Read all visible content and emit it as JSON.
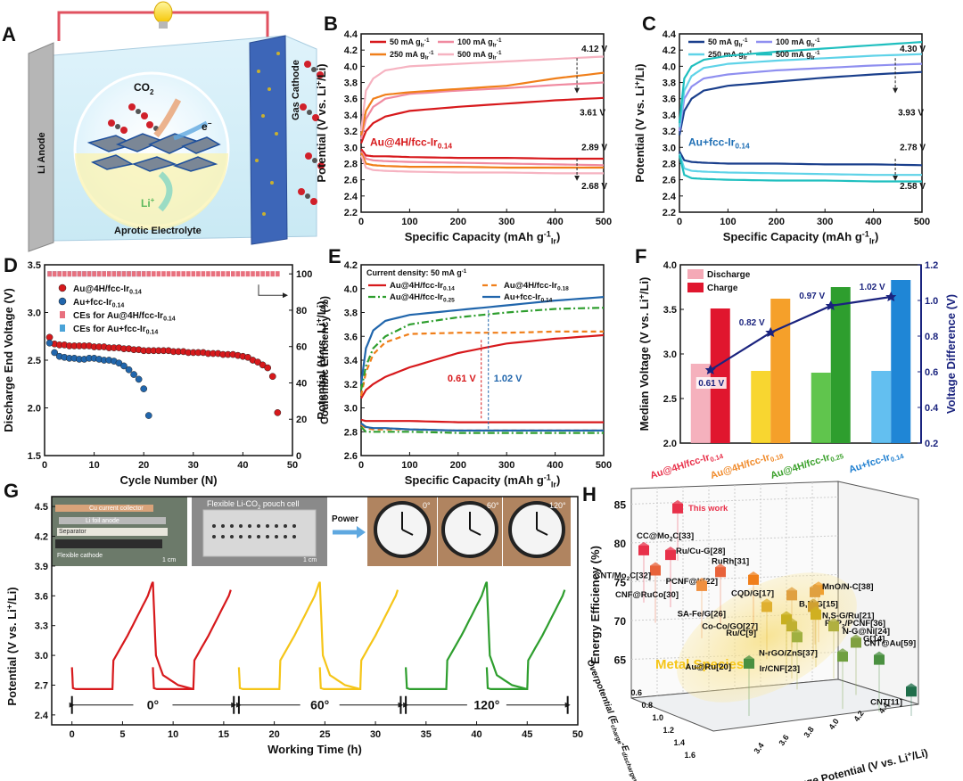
{
  "panels": {
    "A": {
      "letter": "A",
      "labels": {
        "anode": "Li Anode",
        "cathode": "Gas Cathode",
        "electrolyte": "Aprotic Electrolyte",
        "co2": "CO",
        "co2_sub": "2",
        "electron": "e",
        "electron_sup": "−",
        "li": "Li",
        "li_sup": "+"
      }
    },
    "B": {
      "letter": "B",
      "annotations": {
        "top": "4.12 V",
        "upper": "3.61 V",
        "lower_top": "2.89 V",
        "bottom": "2.68 V",
        "catalyst": "Au@4H/fcc-Ir0.14"
      }
    },
    "C": {
      "letter": "C",
      "annotations": {
        "top": "4.30 V",
        "upper": "3.93 V",
        "lower_top": "2.78 V",
        "bottom": "2.58 V",
        "catalyst": "Au+fcc-Ir0.14"
      }
    },
    "D": {
      "letter": "D"
    },
    "E": {
      "letter": "E",
      "note": "Current density: 50 mA g",
      "note_sup": "-1",
      "gap1": "0.61 V",
      "gap2": "1.02 V"
    },
    "F": {
      "letter": "F",
      "legend": [
        "Discharge",
        "Charge"
      ],
      "diff_labels": [
        "0.61 V",
        "0.82 V",
        "0.97 V",
        "1.02 V"
      ]
    },
    "G": {
      "letter": "G",
      "photo_labels": [
        "Cu current collector",
        "Li foil anode",
        "Separator",
        "Flexible cathode"
      ],
      "pouch_title": "Flexible Li-CO",
      "pouch_title_sub": "2",
      "pouch_title_end": " pouch cell",
      "power": "Power",
      "angles": [
        "0°",
        "60°",
        "120°"
      ],
      "scale": "1 cm"
    },
    "H": {
      "letter": "H",
      "this_work": "This work",
      "cluster_label": "Metal Species"
    }
  },
  "chart_data": [
    {
      "panel": "B",
      "type": "line",
      "xlabel": "Specific Capacity (mAh g",
      "xlabel_sup": "-1",
      "xlabel_sub": "Ir",
      "ylabel": "Potential (V vs. Li",
      "xlim": [
        0,
        500
      ],
      "ylim": [
        2.2,
        4.4
      ],
      "xticks": [
        0,
        100,
        200,
        300,
        400,
        500
      ],
      "yticks": [
        2.2,
        2.4,
        2.6,
        2.8,
        3.0,
        3.2,
        3.4,
        3.6,
        3.8,
        4.0,
        4.2,
        4.4
      ],
      "x": [
        0,
        10,
        25,
        50,
        100,
        200,
        300,
        400,
        500
      ],
      "series": [
        {
          "name": "50 mA g",
          "color": "#d7191c",
          "charge": [
            3.05,
            3.2,
            3.3,
            3.38,
            3.45,
            3.5,
            3.54,
            3.58,
            3.61
          ],
          "discharge": [
            2.98,
            2.9,
            2.89,
            2.89,
            2.88,
            2.87,
            2.87,
            2.86,
            2.86
          ]
        },
        {
          "name": "100 mA g",
          "color": "#f08aa0",
          "charge": [
            3.1,
            3.35,
            3.5,
            3.6,
            3.66,
            3.7,
            3.73,
            3.77,
            3.8
          ],
          "discharge": [
            2.95,
            2.86,
            2.84,
            2.83,
            2.82,
            2.81,
            2.8,
            2.79,
            2.78
          ]
        },
        {
          "name": "250 mA g",
          "color": "#f07f1a",
          "charge": [
            3.15,
            3.45,
            3.6,
            3.65,
            3.68,
            3.72,
            3.76,
            3.85,
            3.92
          ],
          "discharge": [
            2.93,
            2.8,
            2.78,
            2.77,
            2.76,
            2.76,
            2.75,
            2.75,
            2.75
          ]
        },
        {
          "name": "500 mA g",
          "color": "#f6b3c1",
          "charge": [
            3.2,
            3.7,
            3.85,
            3.95,
            4.0,
            4.03,
            4.06,
            4.09,
            4.12
          ],
          "discharge": [
            2.9,
            2.75,
            2.72,
            2.71,
            2.7,
            2.69,
            2.69,
            2.68,
            2.68
          ]
        }
      ]
    },
    {
      "panel": "C",
      "type": "line",
      "xlabel": "Specific Capacity (mAh g",
      "xlabel_sup": "-1",
      "xlabel_sub": "Ir",
      "ylabel": "Potential (V vs. Li",
      "xlim": [
        0,
        500
      ],
      "ylim": [
        2.2,
        4.4
      ],
      "xticks": [
        0,
        100,
        200,
        300,
        400,
        500
      ],
      "yticks": [
        2.2,
        2.4,
        2.6,
        2.8,
        3.0,
        3.2,
        3.4,
        3.6,
        3.8,
        4.0,
        4.2,
        4.4
      ],
      "x": [
        0,
        10,
        25,
        50,
        100,
        200,
        300,
        400,
        500
      ],
      "series": [
        {
          "name": "50 mA g",
          "color": "#1a3f8c",
          "charge": [
            3.15,
            3.45,
            3.6,
            3.7,
            3.76,
            3.81,
            3.86,
            3.9,
            3.93
          ],
          "discharge": [
            2.95,
            2.84,
            2.82,
            2.81,
            2.8,
            2.8,
            2.79,
            2.79,
            2.78
          ]
        },
        {
          "name": "100 mA g",
          "color": "#8f8ff0",
          "charge": [
            3.2,
            3.6,
            3.75,
            3.85,
            3.9,
            3.95,
            3.98,
            4.01,
            4.03
          ]
        },
        {
          "name": "250 mA g",
          "color": "#5fd3e8",
          "charge": [
            3.25,
            3.7,
            3.88,
            3.98,
            4.03,
            4.07,
            4.1,
            4.13,
            4.15
          ],
          "discharge": [
            2.92,
            2.74,
            2.71,
            2.7,
            2.69,
            2.68,
            2.67,
            2.66,
            2.66
          ]
        },
        {
          "name": "500 mA g",
          "color": "#1fbfbf",
          "charge": [
            3.3,
            3.85,
            4.0,
            4.08,
            4.13,
            4.18,
            4.22,
            4.26,
            4.3
          ],
          "discharge": [
            2.9,
            2.66,
            2.62,
            2.61,
            2.6,
            2.59,
            2.59,
            2.58,
            2.58
          ]
        }
      ]
    },
    {
      "panel": "D",
      "type": "scatter",
      "xlabel": "Cycle Number (N)",
      "ylabel": "Discharge End Voltage (V)",
      "y2label": "Coulombic Efficiency (%)",
      "xlim": [
        0,
        50
      ],
      "ylim": [
        1.5,
        3.5
      ],
      "y2lim": [
        0,
        105
      ],
      "xticks": [
        0,
        10,
        20,
        30,
        40,
        50
      ],
      "yticks": [
        1.5,
        2.0,
        2.5,
        3.0,
        3.5
      ],
      "y2ticks": [
        0,
        20,
        40,
        60,
        80,
        100
      ],
      "series": [
        {
          "name": "Au@4H/fcc-Ir",
          "name_sub": "0.14",
          "color": "#d7191c",
          "x": [
            1,
            2,
            3,
            4,
            5,
            6,
            7,
            8,
            9,
            10,
            11,
            12,
            13,
            14,
            15,
            16,
            17,
            18,
            19,
            20,
            21,
            22,
            23,
            24,
            25,
            26,
            27,
            28,
            29,
            30,
            31,
            32,
            33,
            34,
            35,
            36,
            37,
            38,
            39,
            40,
            41,
            42,
            43,
            44,
            45,
            46,
            47
          ],
          "y": [
            2.74,
            2.67,
            2.66,
            2.66,
            2.65,
            2.65,
            2.65,
            2.65,
            2.65,
            2.64,
            2.64,
            2.64,
            2.63,
            2.63,
            2.63,
            2.62,
            2.62,
            2.61,
            2.61,
            2.6,
            2.6,
            2.6,
            2.6,
            2.6,
            2.6,
            2.59,
            2.59,
            2.59,
            2.58,
            2.58,
            2.58,
            2.58,
            2.57,
            2.57,
            2.57,
            2.56,
            2.56,
            2.56,
            2.55,
            2.54,
            2.53,
            2.5,
            2.48,
            2.45,
            2.42,
            2.33,
            1.95
          ]
        },
        {
          "name": "Au+fcc-Ir",
          "name_sub": "0.14",
          "color": "#2166ac",
          "x": [
            1,
            2,
            3,
            4,
            5,
            6,
            7,
            8,
            9,
            10,
            11,
            12,
            13,
            14,
            15,
            16,
            17,
            18,
            19,
            20,
            21
          ],
          "y": [
            2.68,
            2.58,
            2.54,
            2.53,
            2.52,
            2.52,
            2.51,
            2.51,
            2.52,
            2.52,
            2.51,
            2.5,
            2.5,
            2.49,
            2.47,
            2.44,
            2.4,
            2.35,
            2.3,
            2.2,
            1.92
          ]
        },
        {
          "name": "CEs for Au@4H/fcc-Ir",
          "name_sub": "0.14",
          "color": "#e8707e",
          "cycles": 47,
          "ce": 100
        },
        {
          "name": "CEs for Au+fcc-Ir",
          "name_sub": "0.14",
          "color": "#4aa3d8",
          "cycles": 21,
          "ce": 100
        }
      ]
    },
    {
      "panel": "E",
      "type": "line",
      "xlabel": "Specific Capacity (mAh g",
      "xlabel_sup": "-1",
      "xlabel_sub": "Ir",
      "ylabel": "Potential (V vs. Li",
      "xlim": [
        0,
        500
      ],
      "ylim": [
        2.6,
        4.2
      ],
      "xticks": [
        0,
        100,
        200,
        300,
        400,
        500
      ],
      "yticks": [
        2.6,
        2.8,
        3.0,
        3.2,
        3.4,
        3.6,
        3.8,
        4.0,
        4.2
      ],
      "x": [
        0,
        10,
        25,
        50,
        100,
        200,
        300,
        400,
        500
      ],
      "series": [
        {
          "name": "Au@4H/fcc-Ir",
          "name_sub": "0.14",
          "color": "#d7191c",
          "dash": "",
          "charge": [
            3.08,
            3.15,
            3.2,
            3.26,
            3.34,
            3.46,
            3.54,
            3.58,
            3.61
          ],
          "discharge": [
            2.9,
            2.89,
            2.89,
            2.89,
            2.89,
            2.88,
            2.88,
            2.88,
            2.88
          ]
        },
        {
          "name": "Au@4H/fcc-Ir",
          "name_sub": "0.18",
          "color": "#f07f1a",
          "dash": "6,4",
          "charge": [
            3.1,
            3.3,
            3.45,
            3.55,
            3.62,
            3.63,
            3.63,
            3.64,
            3.64
          ],
          "discharge": [
            2.86,
            2.83,
            2.82,
            2.82,
            2.82,
            2.81,
            2.81,
            2.81,
            2.81
          ]
        },
        {
          "name": "Au@4H/fcc-Ir",
          "name_sub": "0.25",
          "color": "#2e9e2e",
          "dash": "8,3,2,3",
          "charge": [
            3.15,
            3.35,
            3.5,
            3.6,
            3.7,
            3.76,
            3.8,
            3.83,
            3.84
          ],
          "discharge": [
            2.84,
            2.8,
            2.8,
            2.8,
            2.8,
            2.79,
            2.79,
            2.79,
            2.79
          ]
        },
        {
          "name": "Au+fcc-Ir",
          "name_sub": "0.14",
          "color": "#2166ac",
          "dash": "",
          "charge": [
            3.2,
            3.5,
            3.65,
            3.73,
            3.78,
            3.82,
            3.86,
            3.9,
            3.93
          ],
          "discharge": [
            2.87,
            2.84,
            2.83,
            2.83,
            2.82,
            2.81,
            2.81,
            2.81,
            2.81
          ]
        }
      ]
    },
    {
      "panel": "F",
      "type": "bar",
      "ylabel": "Median Voltage (V vs. Li",
      "y2label": "Voltage Difference (V)",
      "ylim": [
        2.0,
        4.0
      ],
      "y2lim": [
        0.2,
        1.2
      ],
      "yticks": [
        2.0,
        2.5,
        3.0,
        3.5,
        4.0
      ],
      "y2ticks": [
        0.2,
        0.4,
        0.6,
        0.8,
        1.0,
        1.2
      ],
      "categories": [
        {
          "base": "Au@4H/fcc-Ir",
          "sub": "0.14",
          "color": "#e8314a"
        },
        {
          "base": "Au@4H/fcc-Ir",
          "sub": "0.18",
          "color": "#f08a2a"
        },
        {
          "base": "Au@4H/fcc-Ir",
          "sub": "0.25",
          "color": "#3aa02a"
        },
        {
          "base": "Au+fcc-Ir",
          "sub": "0.14",
          "color": "#1f7fd0"
        }
      ],
      "bar_colors": {
        "discharge": [
          "#f4a9b6",
          "#f7d21a",
          "#4fbf3a",
          "#52b8ee"
        ],
        "charge": [
          "#e0162e",
          "#f5a02a",
          "#2e9e2e",
          "#1f86d6"
        ]
      },
      "series": [
        {
          "name": "Discharge",
          "values": [
            2.89,
            2.81,
            2.79,
            2.81
          ]
        },
        {
          "name": "Charge",
          "values": [
            3.51,
            3.62,
            3.75,
            3.83
          ]
        },
        {
          "name": "Voltage Difference",
          "values": [
            0.61,
            0.82,
            0.97,
            1.02
          ]
        }
      ]
    },
    {
      "panel": "G",
      "type": "line",
      "xlabel": "Working Time (h)",
      "ylabel": "Potential (V vs. Li",
      "xlim": [
        -2,
        50
      ],
      "ylim": [
        2.3,
        4.6
      ],
      "xticks": [
        0,
        5,
        10,
        15,
        20,
        25,
        30,
        35,
        40,
        45,
        50
      ],
      "yticks": [
        2.4,
        2.7,
        3.0,
        3.3,
        3.6,
        3.9,
        4.2,
        4.5
      ],
      "series": [
        {
          "name": "0°",
          "color": "#d7191c",
          "start": 0,
          "end": 16
        },
        {
          "name": "60°",
          "color": "#f5c518",
          "start": 16.5,
          "end": 32.5
        },
        {
          "name": "120°",
          "color": "#2e9e2e",
          "start": 33,
          "end": 49
        }
      ],
      "cycle_shape": {
        "t": [
          0,
          0.1,
          0.4,
          4.0,
          4.1,
          5.5,
          6.5,
          7.5,
          7.9,
          8.0,
          8.3,
          9.0,
          10.5,
          12.0
        ],
        "v": [
          2.88,
          2.67,
          2.66,
          2.66,
          2.95,
          3.2,
          3.4,
          3.6,
          3.72,
          3.74,
          3.0,
          2.8,
          2.7,
          2.66
        ]
      }
    },
    {
      "panel": "H",
      "type": "scatter",
      "xlabel": "Charge Potential (V vs. Li",
      "ylabel": "Energy Efficiency (%)",
      "zlabel": "Overpotential (E",
      "zlabel_sub": "charge",
      "zlabel_mid": "-E",
      "zlabel_sub2": "discharge",
      "zlabel_end": ", V)",
      "yticks": [
        65,
        70,
        75,
        80,
        85
      ],
      "xticks": [
        3.4,
        3.6,
        3.8,
        4.0,
        4.2,
        4.4
      ],
      "zticks": [
        0.6,
        0.8,
        1.0,
        1.2,
        1.4,
        1.6
      ],
      "points": [
        {
          "label": "This work",
          "ee": 84.6,
          "color": "#e8314a"
        },
        {
          "label": "CC@Mo",
          "label_sub": "2",
          "label_end": "C[33]",
          "ee": 79.2,
          "color": "#e8314a"
        },
        {
          "label": "Ru/Cu-G[28]",
          "ee": 78.6,
          "color": "#e8314a"
        },
        {
          "label": "CNT/Mo",
          "label_sub": "2",
          "label_end": "C[32]",
          "ee": 76.6,
          "color": "#e8623a"
        },
        {
          "label": "RuRh[31]",
          "ee": 76.4,
          "color": "#e8623a"
        },
        {
          "label": "PCNF@Ir[22]",
          "ee": 75.4,
          "color": "#f07f1a"
        },
        {
          "label": "CNF@RuCo[30]",
          "ee": 74.6,
          "color": "#f09040"
        },
        {
          "label": "CQD/G[17]",
          "ee": 74.1,
          "color": "#f0a030"
        },
        {
          "label": "MnO/N-C[38]",
          "ee": 73.8,
          "color": "#e0a040"
        },
        {
          "label": "B,N-G[15]",
          "ee": 73.4,
          "color": "#e0a040"
        },
        {
          "label": "SA-Fe/G[26]",
          "ee": 71.9,
          "color": "#e0b030"
        },
        {
          "label": "N,S-G/Ru[21]",
          "ee": 71.9,
          "color": "#d0a030"
        },
        {
          "label": "RuP",
          "label_sub": "2",
          "label_end": "/PCNF[36]",
          "ee": 70.9,
          "color": "#d0b020"
        },
        {
          "label": "Co-Co/GO[27]",
          "ee": 70.3,
          "color": "#c8b020"
        },
        {
          "label": "Ru/C[9]",
          "ee": 69.4,
          "color": "#c0b030"
        },
        {
          "label": "N-G@Ni[24]",
          "ee": 69.4,
          "color": "#b0b040"
        },
        {
          "label": "N-rGO/ZnS[37]",
          "ee": 68.0,
          "color": "#a0b040"
        },
        {
          "label": "G[14]",
          "ee": 67.3,
          "color": "#80a040"
        },
        {
          "label": "Ir/CNF[23]",
          "ee": 65.5,
          "color": "#70a040"
        },
        {
          "label": "CNT@Au[59]",
          "ee": 65.1,
          "color": "#4a9040"
        },
        {
          "label": "Au@Ru[20]",
          "ee": 64.6,
          "color": "#4a9040"
        },
        {
          "label": "CNT[11]",
          "ee": 61.0,
          "color": "#1f6e4a"
        }
      ]
    }
  ]
}
